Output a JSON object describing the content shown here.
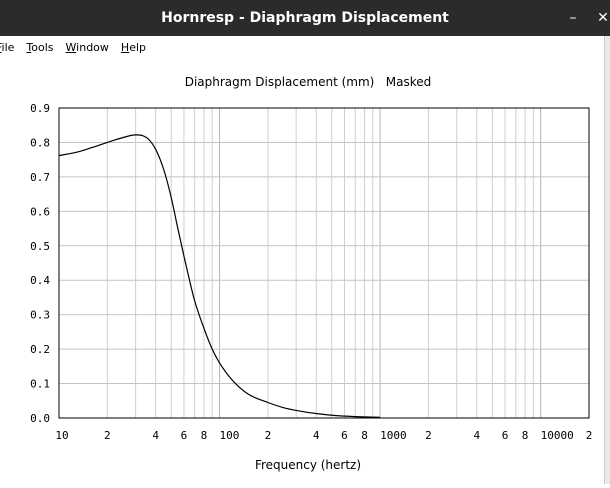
{
  "window": {
    "title": "Hornresp - Diaphragm Displacement",
    "minimize_glyph": "–",
    "close_glyph": "✕"
  },
  "menu": [
    {
      "label": "File",
      "mnemonic": "F"
    },
    {
      "label": "Tools",
      "mnemonic": "T"
    },
    {
      "label": "Window",
      "mnemonic": "W"
    },
    {
      "label": "Help",
      "mnemonic": "H"
    }
  ],
  "chart_data": {
    "type": "line",
    "title": "Diaphragm Displacement (mm)   Masked",
    "xlabel": "Frequency (hertz)",
    "ylabel": "",
    "x_scale": "log",
    "xlim": [
      10,
      20000
    ],
    "ylim": [
      0,
      0.9
    ],
    "x_tick_labels": [
      {
        "x": 10,
        "label": "10"
      },
      {
        "x": 20,
        "label": "2"
      },
      {
        "x": 40,
        "label": "4"
      },
      {
        "x": 60,
        "label": "6"
      },
      {
        "x": 80,
        "label": "8"
      },
      {
        "x": 100,
        "label": "100"
      },
      {
        "x": 200,
        "label": "2"
      },
      {
        "x": 400,
        "label": "4"
      },
      {
        "x": 600,
        "label": "6"
      },
      {
        "x": 800,
        "label": "8"
      },
      {
        "x": 1000,
        "label": "1000"
      },
      {
        "x": 2000,
        "label": "2"
      },
      {
        "x": 4000,
        "label": "4"
      },
      {
        "x": 6000,
        "label": "6"
      },
      {
        "x": 8000,
        "label": "8"
      },
      {
        "x": 10000,
        "label": "10000"
      },
      {
        "x": 20000,
        "label": "2"
      }
    ],
    "y_ticks": [
      0.0,
      0.1,
      0.2,
      0.3,
      0.4,
      0.5,
      0.6,
      0.7,
      0.8,
      0.9
    ],
    "y_tick_labels": [
      "0.0",
      "0.1",
      "0.2",
      "0.3",
      "0.4",
      "0.5",
      "0.6",
      "0.7",
      "0.8",
      "0.9"
    ],
    "grid": true,
    "line_color": "#000000",
    "grid_color": "#cfcfcf",
    "series": [
      {
        "x": [
          10,
          13,
          16,
          20,
          25,
          30,
          33,
          36,
          40,
          45,
          50,
          55,
          60,
          65,
          70,
          80,
          90,
          100,
          120,
          150,
          200,
          250,
          300,
          400,
          500,
          700,
          1000
        ],
        "y": [
          0.762,
          0.772,
          0.785,
          0.8,
          0.814,
          0.822,
          0.82,
          0.81,
          0.78,
          0.72,
          0.64,
          0.55,
          0.47,
          0.4,
          0.34,
          0.26,
          0.2,
          0.16,
          0.11,
          0.07,
          0.045,
          0.03,
          0.022,
          0.013,
          0.008,
          0.004,
          0.002
        ]
      }
    ]
  }
}
